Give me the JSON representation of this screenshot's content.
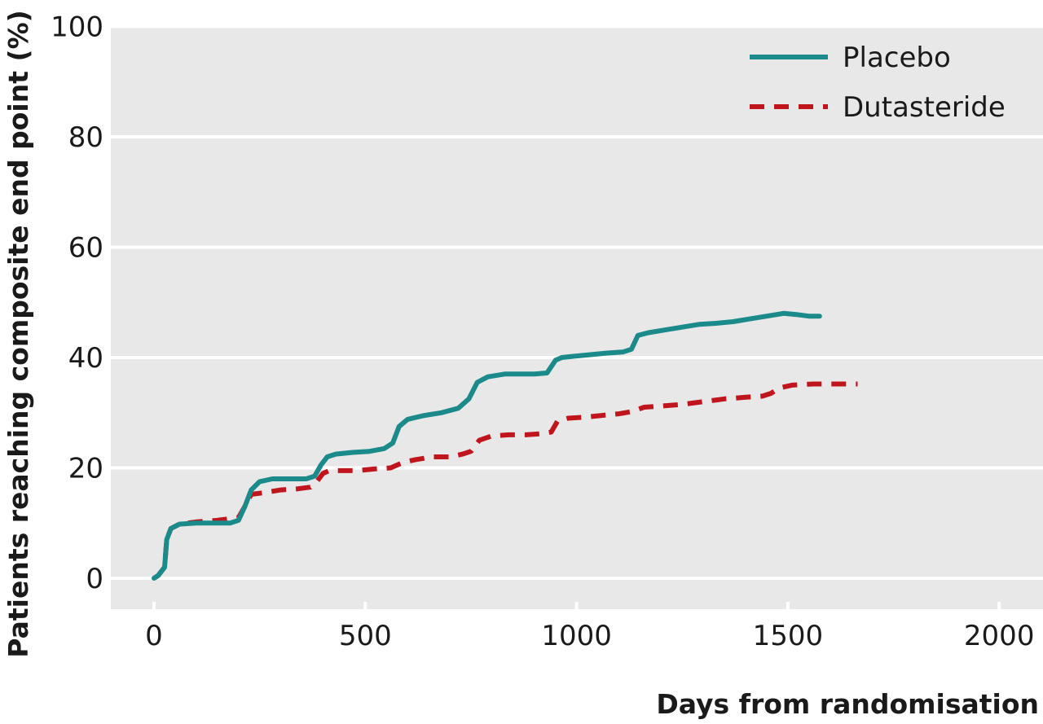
{
  "chart_data": {
    "type": "line",
    "title": "",
    "xlabel": "Days from randomisation",
    "ylabel": "Patients reaching composite end point (%)",
    "xlim": [
      -100,
      2100
    ],
    "ylim": [
      -5,
      100
    ],
    "x_ticks": [
      0,
      500,
      1000,
      1500,
      2000
    ],
    "x_tick_labels": [
      "0",
      "500",
      "1000",
      "1500",
      "2000"
    ],
    "y_ticks": [
      0,
      20,
      40,
      60,
      80,
      100
    ],
    "y_tick_labels": [
      "0",
      "20",
      "40",
      "60",
      "80",
      "100"
    ],
    "grid": "horizontal",
    "legend_position": "top-right",
    "colors": {
      "background": "#e8e8e8",
      "grid": "#ffffff",
      "Placebo": "#1b8a8a",
      "Dutasteride": "#c0151c"
    },
    "series": [
      {
        "name": "Placebo",
        "style": "solid",
        "x": [
          0,
          10,
          25,
          30,
          40,
          60,
          100,
          150,
          180,
          200,
          215,
          230,
          250,
          280,
          320,
          360,
          380,
          395,
          410,
          430,
          470,
          510,
          545,
          565,
          580,
          600,
          640,
          680,
          720,
          745,
          765,
          790,
          830,
          870,
          900,
          930,
          950,
          965,
          990,
          1030,
          1070,
          1110,
          1130,
          1145,
          1170,
          1210,
          1250,
          1290,
          1330,
          1370,
          1410,
          1450,
          1490,
          1520,
          1550,
          1575
        ],
        "y": [
          0,
          0.5,
          2,
          7,
          9,
          9.8,
          10,
          10,
          10,
          10.5,
          13,
          16,
          17.5,
          18,
          18,
          18,
          18.5,
          20.5,
          22,
          22.5,
          22.8,
          23,
          23.5,
          24.5,
          27.5,
          28.8,
          29.5,
          30,
          30.8,
          32.5,
          35.5,
          36.5,
          37,
          37,
          37,
          37.2,
          39.5,
          40,
          40.2,
          40.5,
          40.8,
          41,
          41.5,
          44,
          44.5,
          45,
          45.5,
          46,
          46.2,
          46.5,
          47,
          47.5,
          48,
          47.8,
          47.5,
          47.5
        ]
      },
      {
        "name": "Dutasteride",
        "style": "dashed",
        "x": [
          0,
          10,
          25,
          30,
          40,
          60,
          100,
          150,
          180,
          200,
          215,
          230,
          260,
          300,
          340,
          370,
          385,
          400,
          415,
          440,
          480,
          520,
          560,
          590,
          620,
          660,
          700,
          730,
          750,
          770,
          800,
          840,
          880,
          920,
          940,
          955,
          980,
          1020,
          1060,
          1100,
          1130,
          1160,
          1200,
          1250,
          1300,
          1350,
          1400,
          1440,
          1460,
          1480,
          1510,
          1560,
          1620,
          1665
        ],
        "y": [
          0,
          0.5,
          2,
          7,
          9,
          9.8,
          10.2,
          10.5,
          10.8,
          11,
          13,
          15.2,
          15.5,
          16,
          16.2,
          16.5,
          17.5,
          19,
          19.5,
          19.5,
          19.5,
          19.8,
          20,
          21,
          21.5,
          22,
          22,
          22.5,
          23,
          25,
          25.8,
          26,
          26,
          26.2,
          26.5,
          28.5,
          29,
          29.2,
          29.5,
          29.8,
          30.2,
          31,
          31.2,
          31.5,
          32,
          32.5,
          32.8,
          33,
          33.5,
          34.5,
          35,
          35.2,
          35.2,
          35.2
        ]
      }
    ]
  }
}
